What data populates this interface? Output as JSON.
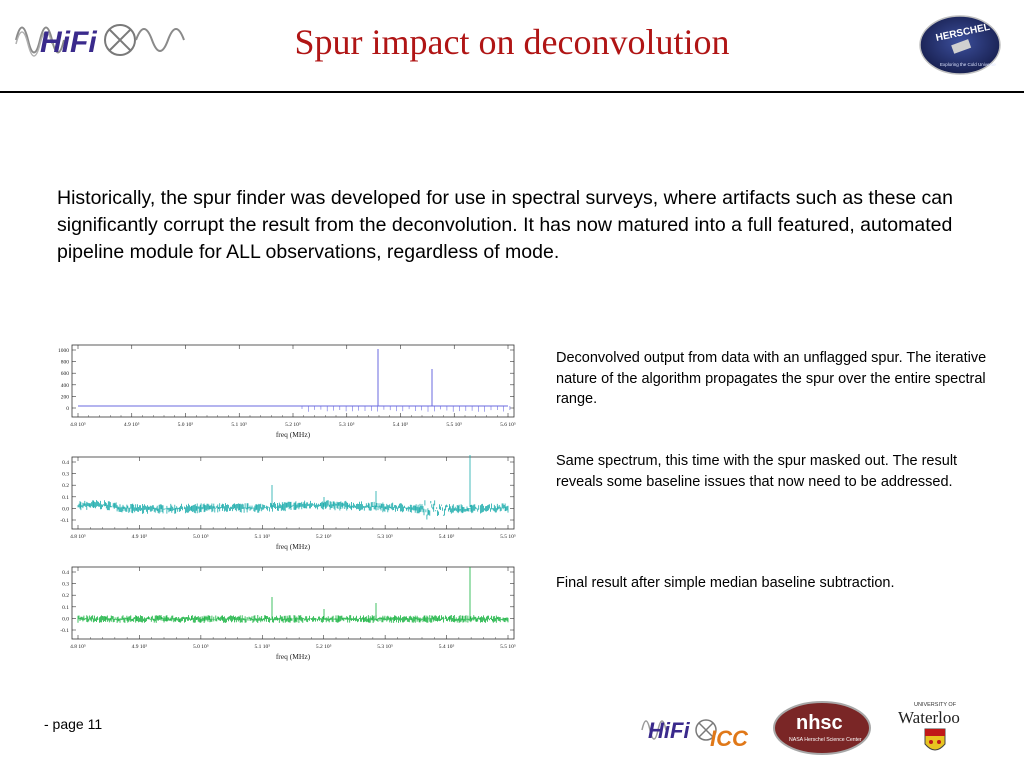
{
  "header": {
    "title": "Spur impact on deconvolution",
    "hifi_logo_text": "HiFi",
    "herschel_logo_text": "HERSCHEL",
    "herschel_logo_subtext": "Exploring the Cold Universe"
  },
  "intro_text": "Historically, the spur finder was developed for use in spectral surveys, where artifacts such as these can significantly corrupt the result from the deconvolution.  It has now matured into a full featured, automated pipeline module for ALL observations, regardless of mode.",
  "panels": [
    {
      "caption": "Deconvolved output from data with an unflagged spur.  The iterative nature of the algorithm propagates the spur over the entire spectral range.",
      "xlabel": "freq (MHz)",
      "color": "#6a6adf",
      "xticks": [
        "4.8 10⁵",
        "4.9 10⁵",
        "5.0 10⁵",
        "5.1 10⁵",
        "5.2 10⁵",
        "5.3 10⁵",
        "5.4 10⁵",
        "5.5 10⁵",
        "5.6 10⁵"
      ],
      "yticks": [
        "1000",
        "800",
        "600",
        "400",
        "200",
        "0"
      ]
    },
    {
      "caption": "Same spectrum, this time with the spur masked out.  The result reveals some baseline issues that now need to be addressed.",
      "xlabel": "freq (MHz)",
      "color": "#17aaaa",
      "xticks": [
        "4.8 10⁵",
        "4.9 10⁵",
        "5.0 10⁵",
        "5.1 10⁵",
        "5.2 10⁵",
        "5.3 10⁵",
        "5.4 10⁵",
        "5.5 10⁵"
      ],
      "yticks": [
        "0.4",
        "0.3",
        "0.2",
        "0.1",
        "0.0",
        "-0.1"
      ]
    },
    {
      "caption": "Final result after simple median baseline subtraction.",
      "xlabel": "freq (MHz)",
      "color": "#12b13c",
      "xticks": [
        "4.8 10⁵",
        "4.9 10⁵",
        "5.0 10⁵",
        "5.1 10⁵",
        "5.2 10⁵",
        "5.3 10⁵",
        "5.4 10⁵",
        "5.5 10⁵"
      ],
      "yticks": [
        "0.4",
        "0.3",
        "0.2",
        "0.1",
        "0.0",
        "-0.1"
      ]
    }
  ],
  "footer": {
    "page_label": "- page 11",
    "hifi_text": "HiFi",
    "icc_text": "ICC",
    "nhsc_text": "nhsc",
    "nhsc_subtext": "NASA Herschel Science Center",
    "waterloo_top": "UNIVERSITY OF",
    "waterloo_name": "Waterloo"
  }
}
